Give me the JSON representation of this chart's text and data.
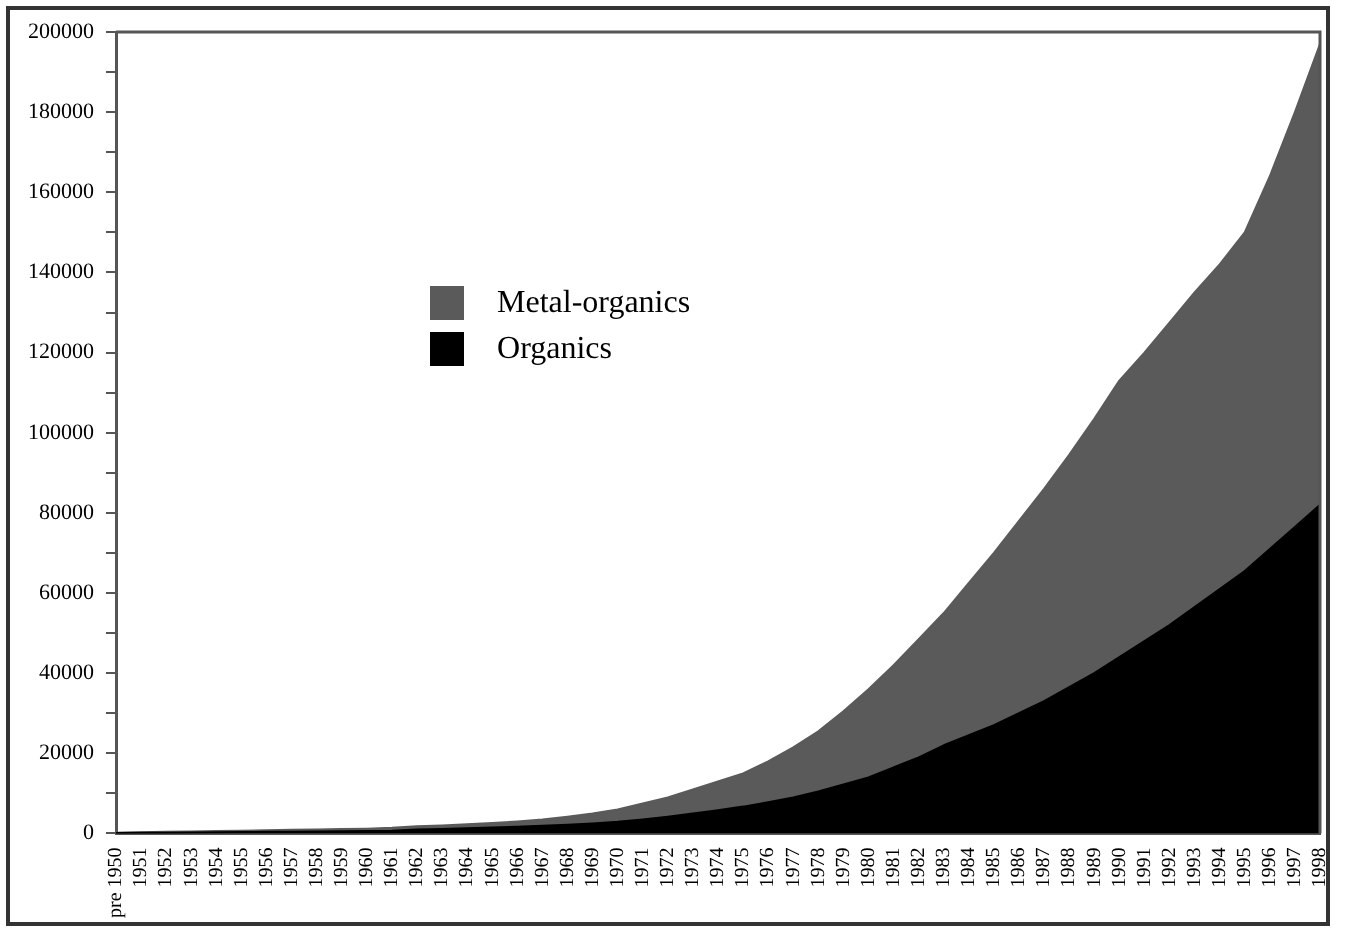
{
  "chart_data": {
    "type": "area",
    "stacked": true,
    "legend": "top left",
    "grid": false,
    "categories": [
      "pre 1950",
      "1951",
      "1952",
      "1953",
      "1954",
      "1955",
      "1956",
      "1957",
      "1958",
      "1959",
      "1960",
      "1961",
      "1962",
      "1963",
      "1964",
      "1965",
      "1966",
      "1967",
      "1968",
      "1969",
      "1970",
      "1971",
      "1972",
      "1973",
      "1974",
      "1975",
      "1976",
      "1977",
      "1978",
      "1979",
      "1980",
      "1981",
      "1982",
      "1983",
      "1984",
      "1985",
      "1986",
      "1987",
      "1988",
      "1989",
      "1990",
      "1991",
      "1992",
      "1993",
      "1994",
      "1995",
      "1996",
      "1997",
      "1998"
    ],
    "ylim": [
      0,
      200000
    ],
    "yticks": [
      0,
      {
        "value": 10000,
        "label": null
      },
      20000,
      {
        "value": 30000,
        "label": null
      },
      40000,
      {
        "value": 50000,
        "label": null
      },
      60000,
      {
        "value": 70000,
        "label": null
      },
      80000,
      {
        "value": 90000,
        "label": null
      },
      100000,
      {
        "value": 110000,
        "label": null
      },
      120000,
      {
        "value": 130000,
        "label": null
      },
      140000,
      {
        "value": 150000,
        "label": null
      },
      160000,
      {
        "value": 170000,
        "label": null
      },
      180000,
      {
        "value": 190000,
        "label": null
      },
      200000
    ],
    "series": [
      {
        "name": "Organics",
        "color": "#000000",
        "values": [
          100,
          150,
          200,
          250,
          300,
          350,
          400,
          450,
          500,
          550,
          600,
          700,
          1000,
          1100,
          1300,
          1500,
          1700,
          1900,
          2200,
          2500,
          2900,
          3500,
          4200,
          5000,
          5800,
          6700,
          7800,
          9000,
          10500,
          12200,
          14000,
          16500,
          19000,
          22000,
          24500,
          27000,
          30000,
          33000,
          36500,
          40000,
          44000,
          48000,
          52000,
          56500,
          61000,
          65500,
          71000,
          76500,
          82000
        ]
      },
      {
        "name": "Metal-organics",
        "color": "#5a5a5a",
        "values": [
          100,
          150,
          200,
          250,
          300,
          350,
          400,
          450,
          500,
          550,
          600,
          700,
          800,
          900,
          1000,
          1100,
          1300,
          1600,
          2000,
          2500,
          3100,
          4000,
          4800,
          6000,
          7200,
          8300,
          10200,
          12500,
          15000,
          18300,
          22000,
          25500,
          29500,
          33000,
          38000,
          43000,
          48000,
          53000,
          58000,
          63500,
          69000,
          72000,
          75500,
          78500,
          81000,
          84500,
          93000,
          103500,
          115000
        ]
      }
    ]
  }
}
